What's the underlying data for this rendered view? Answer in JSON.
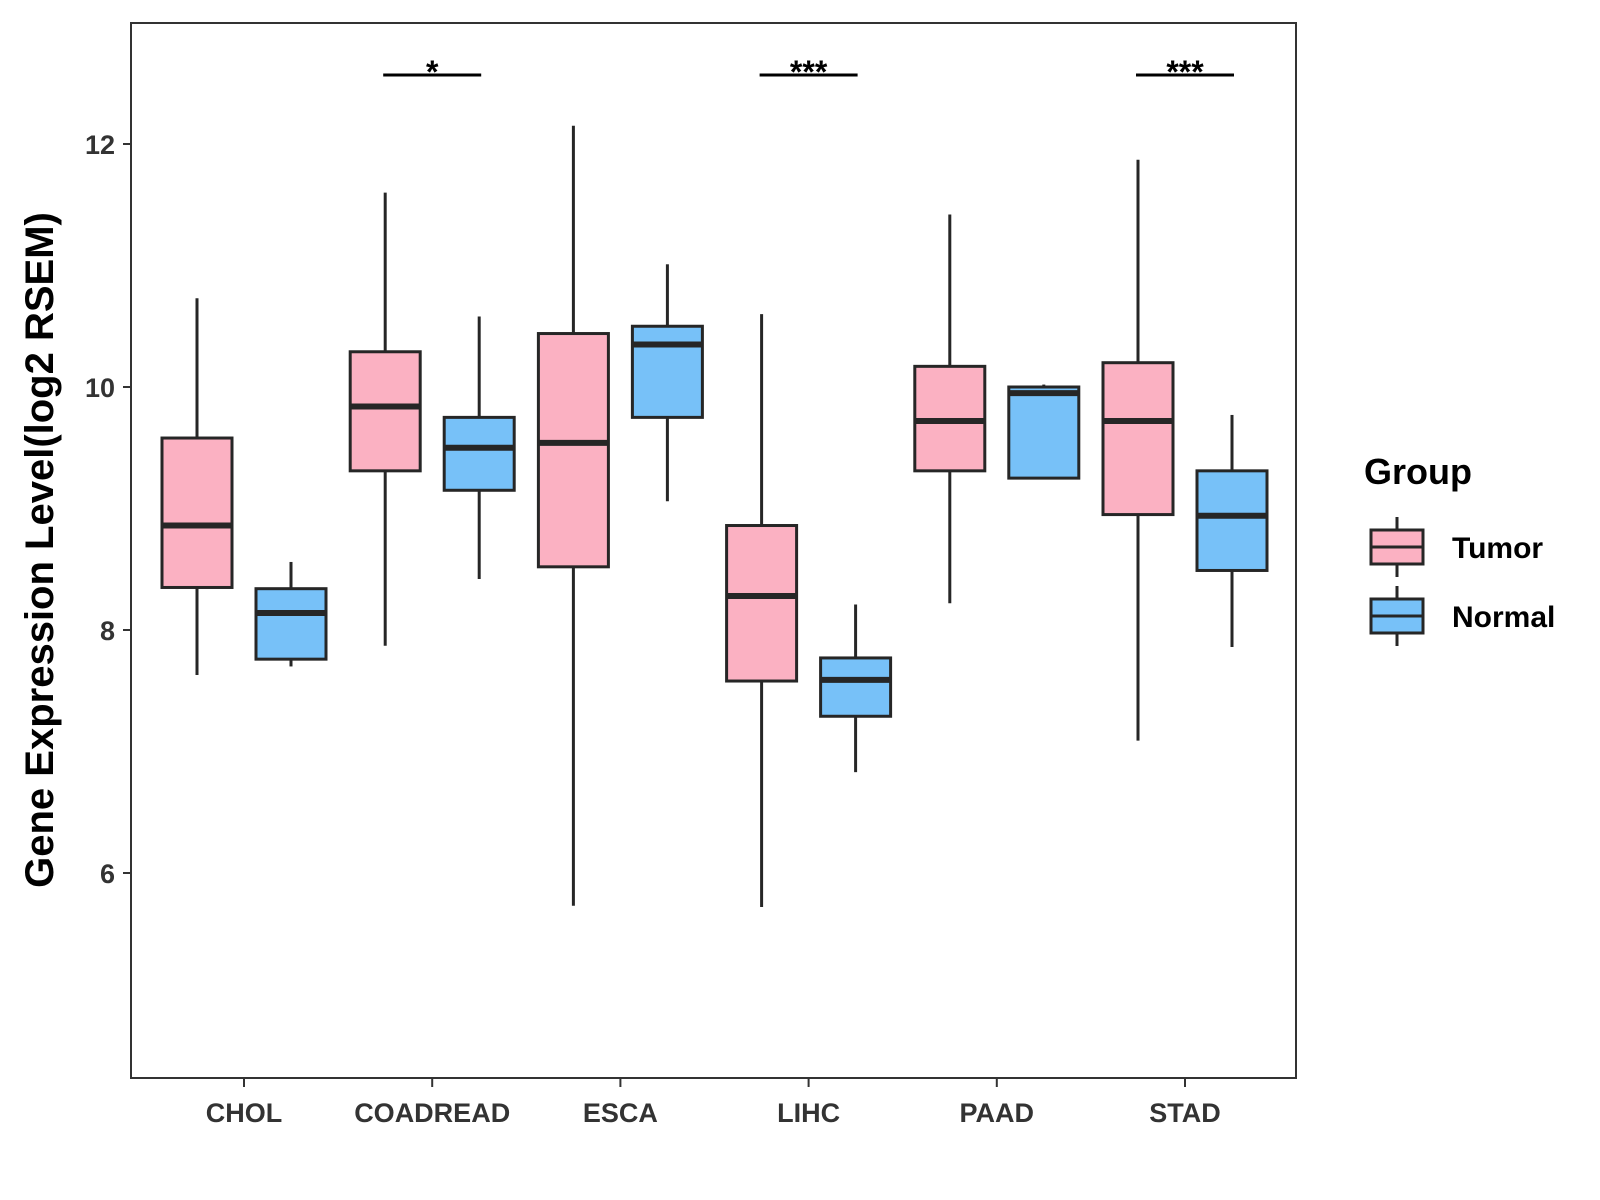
{
  "chart_data": {
    "type": "boxplot",
    "title": "",
    "xlabel": "",
    "ylabel": "Gene Expression Level(log2 RSEM)",
    "ylim": [
      4.3,
      13.0
    ],
    "yticks": [
      6,
      8,
      10,
      12
    ],
    "grid": false,
    "legend": {
      "title": "Group",
      "position": "right",
      "entries": [
        {
          "name": "Tumor",
          "color": "#FBB1C2"
        },
        {
          "name": "Normal",
          "color": "#77C1F8"
        }
      ]
    },
    "categories": [
      "CHOL",
      "COADREAD",
      "ESCA",
      "LIHC",
      "PAAD",
      "STAD"
    ],
    "series": [
      {
        "name": "Tumor",
        "color": "#FBB1C2",
        "boxes": [
          {
            "min": 7.63,
            "q1": 8.35,
            "median": 8.86,
            "q3": 9.58,
            "max": 10.73
          },
          {
            "min": 7.87,
            "q1": 9.31,
            "median": 9.84,
            "q3": 10.29,
            "max": 11.6
          },
          {
            "min": 5.73,
            "q1": 8.52,
            "median": 9.54,
            "q3": 10.44,
            "max": 12.15
          },
          {
            "min": 5.72,
            "q1": 7.58,
            "median": 8.28,
            "q3": 8.86,
            "max": 10.6
          },
          {
            "min": 8.22,
            "q1": 9.31,
            "median": 9.72,
            "q3": 10.17,
            "max": 11.42
          },
          {
            "min": 7.09,
            "q1": 8.95,
            "median": 9.72,
            "q3": 10.2,
            "max": 11.87
          }
        ]
      },
      {
        "name": "Normal",
        "color": "#77C1F8",
        "boxes": [
          {
            "min": 7.7,
            "q1": 7.76,
            "median": 8.14,
            "q3": 8.34,
            "max": 8.56
          },
          {
            "min": 8.42,
            "q1": 9.15,
            "median": 9.5,
            "q3": 9.75,
            "max": 10.58
          },
          {
            "min": 9.06,
            "q1": 9.75,
            "median": 10.35,
            "q3": 10.5,
            "max": 11.01
          },
          {
            "min": 6.83,
            "q1": 7.29,
            "median": 7.59,
            "q3": 7.77,
            "max": 8.21
          },
          {
            "min": 9.25,
            "q1": 9.25,
            "median": 9.95,
            "q3": 10.0,
            "max": 10.02
          },
          {
            "min": 7.86,
            "q1": 8.49,
            "median": 8.94,
            "q3": 9.31,
            "max": 9.77
          }
        ]
      }
    ],
    "significance": [
      {
        "category": "COADREAD",
        "label": "*"
      },
      {
        "category": "LIHC",
        "label": "***"
      },
      {
        "category": "STAD",
        "label": "***"
      }
    ]
  }
}
